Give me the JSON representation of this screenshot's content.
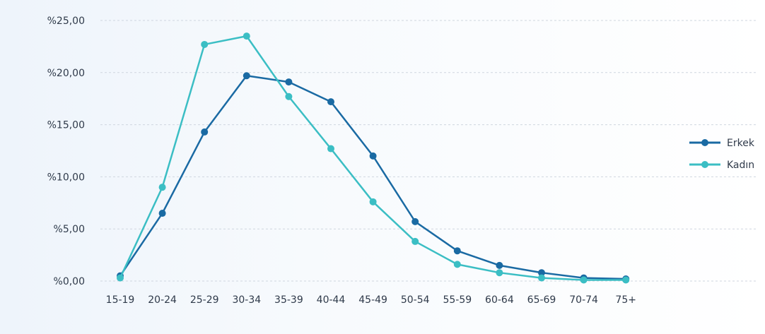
{
  "chart_data": {
    "type": "line",
    "categories": [
      "15-19",
      "20-24",
      "25-29",
      "30-34",
      "35-39",
      "40-44",
      "45-49",
      "50-54",
      "55-59",
      "60-64",
      "65-69",
      "70-74",
      "75+"
    ],
    "ylim": [
      0,
      25
    ],
    "yticks": [
      0,
      5,
      10,
      15,
      20,
      25
    ],
    "ytick_labels": [
      "%0,00",
      "%5,00",
      "%10,00",
      "%15,00",
      "%20,00",
      "%25,00"
    ],
    "grid": true,
    "legend_position": "right",
    "series": [
      {
        "name": "Erkek",
        "color": "#1a6aa3",
        "values": [
          0.5,
          6.5,
          14.3,
          19.7,
          19.1,
          17.2,
          12.0,
          5.7,
          2.9,
          1.5,
          0.8,
          0.3,
          0.2
        ]
      },
      {
        "name": "Kadın",
        "color": "#3bbec4",
        "values": [
          0.3,
          9.0,
          22.7,
          23.5,
          17.7,
          12.7,
          7.6,
          3.8,
          1.6,
          0.8,
          0.3,
          0.1,
          0.1
        ]
      }
    ]
  }
}
